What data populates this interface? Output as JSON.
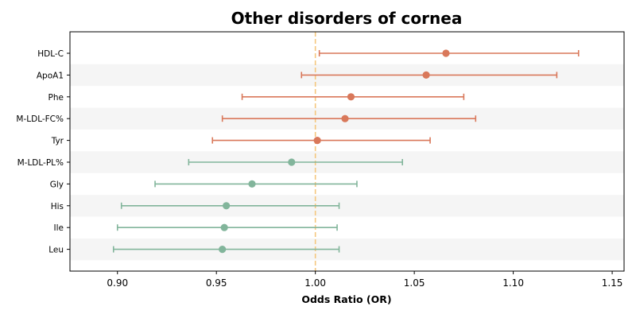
{
  "chart_data": {
    "type": "forest",
    "title": "Other disorders of cornea",
    "xlabel": "Odds Ratio (OR)",
    "ylabel": "",
    "xlim": [
      0.876,
      1.156
    ],
    "xticks": [
      "0.90",
      "0.95",
      "1.00",
      "1.05",
      "1.10",
      "1.15"
    ],
    "reference_line": 1.0,
    "reference_color": "#f5c77e",
    "colors": {
      "positive": "#d9785a",
      "negative": "#82b59b",
      "band": "#f5f5f5"
    },
    "grid": false,
    "categories": [
      "HDL-C",
      "ApoA1",
      "Phe",
      "M-LDL-FC%",
      "Tyr",
      "M-LDL-PL%",
      "Gly",
      "His",
      "Ile",
      "Leu"
    ],
    "values": [
      1.066,
      1.056,
      1.018,
      1.015,
      1.001,
      0.988,
      0.968,
      0.955,
      0.954,
      0.953
    ],
    "lower": [
      1.002,
      0.993,
      0.963,
      0.953,
      0.948,
      0.936,
      0.919,
      0.902,
      0.9,
      0.898
    ],
    "upper": [
      1.133,
      1.122,
      1.075,
      1.081,
      1.058,
      1.044,
      1.021,
      1.012,
      1.011,
      1.012
    ]
  }
}
